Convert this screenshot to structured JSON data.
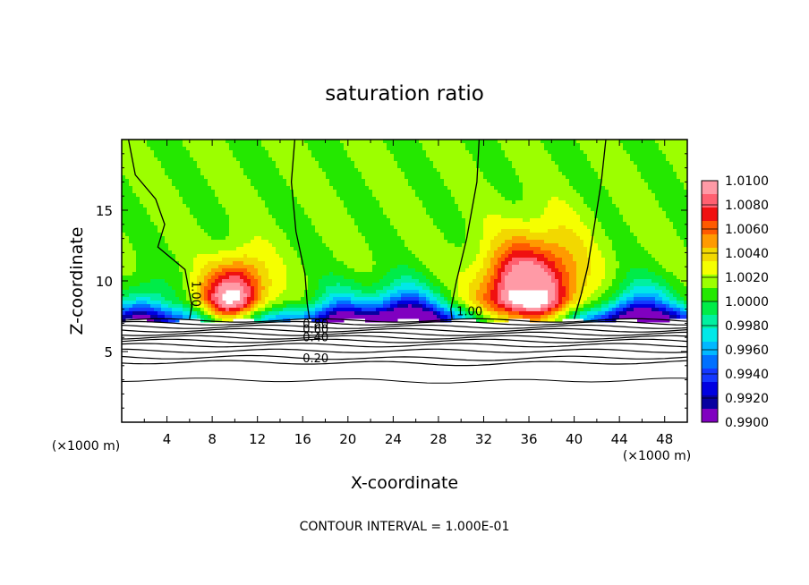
{
  "chart_data": {
    "type": "heatmap",
    "title": "saturation ratio",
    "xlabel": "X-coordinate",
    "ylabel": "Z-coordinate",
    "x_unit": "(×1000 m)",
    "x_unit_right": "(×1000 m)",
    "footer": "CONTOUR INTERVAL = 1.000E-01",
    "xlim": [
      0,
      50
    ],
    "ylim": [
      0,
      20
    ],
    "x_ticks": [
      "4",
      "8",
      "12",
      "16",
      "20",
      "24",
      "28",
      "32",
      "36",
      "40",
      "44",
      "48"
    ],
    "y_ticks": [
      "5",
      "10",
      "15"
    ],
    "colorbar": {
      "labels": [
        "1.0100",
        "1.0080",
        "1.0060",
        "1.0040",
        "1.0020",
        "1.0000",
        "0.9980",
        "0.9960",
        "0.9940",
        "0.9920",
        "0.9900"
      ],
      "colors": [
        "#ff9aa6",
        "#ff6070",
        "#f01010",
        "#ff5a00",
        "#ff9a00",
        "#f2d800",
        "#f5ff00",
        "#9cff00",
        "#24e800",
        "#00ec48",
        "#00f0a0",
        "#00e8e8",
        "#00b8ff",
        "#0070ff",
        "#1438ff",
        "#0000e0",
        "#0800a0",
        "#8000c0"
      ]
    },
    "contour_labels": {
      "mid": [
        "1.00",
        "1.00"
      ],
      "bottom": [
        "0.80",
        "0.60",
        "0.40",
        "0.20"
      ]
    },
    "cloud_peaks_x": [
      9.5,
      35.5
    ],
    "dry_troughs_x": [
      25,
      46
    ]
  }
}
